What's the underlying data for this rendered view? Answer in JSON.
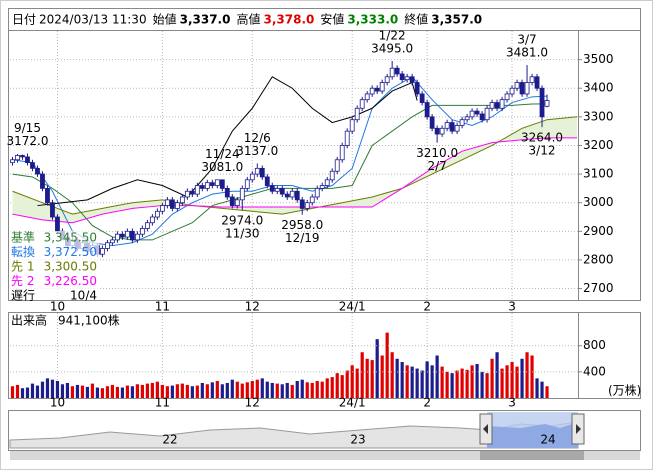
{
  "chart_data": {
    "type": "candlestick",
    "header": {
      "fields": [
        {
          "label": "日付",
          "value": "2024/03/13 11:30",
          "color": "#000000"
        },
        {
          "label": "始値",
          "value": "3,337.0",
          "color": "#000000"
        },
        {
          "label": "高値",
          "value": "3,378.0",
          "color": "#e00000"
        },
        {
          "label": "安値",
          "value": "3,333.0",
          "color": "#008000"
        },
        {
          "label": "終値",
          "value": "3,357.0",
          "color": "#000000"
        }
      ]
    },
    "x": [
      0,
      1,
      2,
      3,
      4,
      5,
      6,
      7,
      8,
      9,
      10,
      11,
      12,
      13,
      14,
      15,
      16,
      17,
      18,
      19,
      20,
      21,
      22,
      23,
      24,
      25,
      26,
      27,
      28,
      29,
      30,
      31,
      32,
      33,
      34,
      35,
      36,
      37,
      38,
      39,
      40,
      41,
      42,
      43,
      44,
      45,
      46,
      47,
      48,
      49,
      50,
      51,
      52,
      53,
      54,
      55,
      56,
      57,
      58,
      59,
      60,
      61,
      62,
      63,
      64,
      65,
      66,
      67,
      68,
      69,
      70,
      71,
      72,
      73,
      74,
      75,
      76,
      77,
      78,
      79,
      80,
      81,
      82,
      83,
      84,
      85,
      86,
      87,
      88,
      89,
      90,
      91,
      92,
      93,
      94,
      95,
      96,
      97,
      98,
      99,
      100,
      101,
      102,
      103,
      104,
      105,
      106,
      107
    ],
    "open": [
      3140,
      3150,
      3165,
      3160,
      3140,
      3120,
      3100,
      3050,
      3000,
      2950,
      2900,
      2880,
      2850,
      2870,
      2840,
      2860,
      2830,
      2850,
      2820,
      2840,
      2860,
      2870,
      2890,
      2880,
      2900,
      2870,
      2890,
      2910,
      2930,
      2950,
      2970,
      2990,
      3010,
      2980,
      3000,
      3020,
      3040,
      3030,
      3060,
      3050,
      3070,
      3060,
      3080,
      3050,
      3020,
      2990,
      3010,
      3050,
      3080,
      3100,
      3120,
      3090,
      3060,
      3040,
      3050,
      3030,
      3020,
      3040,
      3010,
      2980,
      3000,
      3020,
      3050,
      3060,
      3080,
      3110,
      3150,
      3200,
      3250,
      3290,
      3330,
      3360,
      3380,
      3400,
      3390,
      3420,
      3440,
      3470,
      3450,
      3430,
      3440,
      3420,
      3380,
      3350,
      3300,
      3260,
      3240,
      3260,
      3280,
      3250,
      3270,
      3290,
      3300,
      3320,
      3310,
      3290,
      3330,
      3350,
      3330,
      3360,
      3380,
      3400,
      3420,
      3380,
      3420,
      3440,
      3400,
      3337
    ],
    "high": [
      3160,
      3170,
      3168,
      3172,
      3150,
      3130,
      3110,
      3060,
      3010,
      2960,
      2910,
      2890,
      2880,
      2880,
      2870,
      2870,
      2860,
      2860,
      2850,
      2870,
      2880,
      2900,
      2900,
      2910,
      2910,
      2900,
      2920,
      2940,
      2960,
      2980,
      3000,
      3020,
      3020,
      3010,
      3030,
      3050,
      3050,
      3070,
      3070,
      3080,
      3080,
      3078,
      3081,
      3060,
      3030,
      3020,
      3060,
      3090,
      3110,
      3137,
      3130,
      3100,
      3070,
      3060,
      3060,
      3040,
      3050,
      3050,
      3020,
      3010,
      3030,
      3060,
      3070,
      3090,
      3120,
      3160,
      3210,
      3260,
      3300,
      3340,
      3370,
      3390,
      3410,
      3410,
      3430,
      3450,
      3495,
      3480,
      3460,
      3450,
      3450,
      3430,
      3390,
      3360,
      3310,
      3270,
      3270,
      3290,
      3290,
      3280,
      3300,
      3310,
      3330,
      3330,
      3320,
      3340,
      3360,
      3360,
      3370,
      3390,
      3410,
      3430,
      3430,
      3481,
      3450,
      3450,
      3410,
      3378
    ],
    "low": [
      3130,
      3140,
      3150,
      3130,
      3110,
      3090,
      3040,
      2990,
      2940,
      2890,
      2870,
      2840,
      2840,
      2830,
      2830,
      2820,
      2820,
      2810,
      2810,
      2830,
      2850,
      2860,
      2870,
      2870,
      2860,
      2860,
      2880,
      2900,
      2920,
      2940,
      2960,
      2980,
      2970,
      2970,
      2990,
      3010,
      3020,
      3020,
      3040,
      3040,
      3050,
      3050,
      3040,
      3010,
      2980,
      2980,
      2974,
      3040,
      3070,
      3090,
      3080,
      3050,
      3030,
      3030,
      3020,
      3010,
      3010,
      3000,
      2958,
      2970,
      2990,
      3010,
      3040,
      3050,
      3070,
      3100,
      3140,
      3190,
      3240,
      3280,
      3320,
      3350,
      3370,
      3380,
      3380,
      3410,
      3430,
      3440,
      3420,
      3420,
      3410,
      3370,
      3340,
      3290,
      3250,
      3210,
      3230,
      3250,
      3240,
      3240,
      3260,
      3280,
      3290,
      3300,
      3280,
      3280,
      3320,
      3320,
      3320,
      3350,
      3370,
      3390,
      3370,
      3370,
      3410,
      3390,
      3264,
      3333
    ],
    "close": [
      3150,
      3165,
      3160,
      3140,
      3120,
      3100,
      3050,
      3000,
      2950,
      2900,
      2880,
      2850,
      2870,
      2840,
      2860,
      2830,
      2850,
      2820,
      2840,
      2860,
      2870,
      2890,
      2880,
      2900,
      2870,
      2890,
      2910,
      2930,
      2950,
      2970,
      2990,
      3010,
      2980,
      3000,
      3020,
      3040,
      3030,
      3060,
      3050,
      3070,
      3060,
      3080,
      3050,
      3020,
      2990,
      3010,
      3050,
      3080,
      3100,
      3120,
      3090,
      3060,
      3040,
      3050,
      3030,
      3020,
      3040,
      3010,
      2980,
      3000,
      3020,
      3050,
      3060,
      3080,
      3110,
      3150,
      3200,
      3250,
      3290,
      3330,
      3360,
      3380,
      3400,
      3390,
      3420,
      3440,
      3470,
      3450,
      3430,
      3440,
      3420,
      3380,
      3350,
      3300,
      3260,
      3240,
      3260,
      3280,
      3250,
      3270,
      3290,
      3300,
      3320,
      3310,
      3290,
      3330,
      3350,
      3330,
      3360,
      3380,
      3400,
      3420,
      3380,
      3420,
      3440,
      3400,
      3300,
      3357
    ],
    "up_color": "#ffffff",
    "down_color": "#1c1c8c",
    "candle_outline": "#1c1c8c",
    "xlim": [
      -0.5,
      113.2
    ],
    "xticks": [
      {
        "value": 9,
        "label": "10"
      },
      {
        "value": 30,
        "label": "11"
      },
      {
        "value": 48,
        "label": "12"
      },
      {
        "value": 68,
        "label": "24/1"
      },
      {
        "value": 83,
        "label": "2"
      },
      {
        "value": 100,
        "label": "3"
      }
    ],
    "ylim": [
      2660,
      3600
    ],
    "yticks": [
      2700,
      2800,
      2900,
      3000,
      3100,
      3200,
      3300,
      3400,
      3500
    ],
    "grid": true,
    "cloud_color": "#e6f2d8",
    "series": [
      {
        "name": "基準",
        "color": "#2e7d32",
        "value_label": "3,345.50",
        "x": [
          0,
          4,
          8,
          12,
          16,
          20,
          24,
          28,
          32,
          36,
          40,
          44,
          48,
          52,
          56,
          60,
          64,
          68,
          72,
          76,
          80,
          84,
          88,
          92,
          96,
          100,
          104,
          107
        ],
        "values": [
          3100,
          3090,
          3050,
          3000,
          2920,
          2880,
          2870,
          2870,
          2900,
          2930,
          2990,
          3010,
          3030,
          3050,
          3050,
          3050,
          3050,
          3060,
          3200,
          3250,
          3300,
          3340,
          3340,
          3340,
          3340,
          3340,
          3345,
          3345.5
        ]
      },
      {
        "name": "転換",
        "color": "#1e78e6",
        "value_label": "3,372.50",
        "x": [
          0,
          4,
          8,
          12,
          16,
          20,
          24,
          28,
          32,
          36,
          40,
          44,
          48,
          52,
          56,
          60,
          64,
          68,
          72,
          76,
          80,
          84,
          88,
          92,
          96,
          100,
          104,
          107
        ],
        "values": [
          3150,
          3140,
          3040,
          2900,
          2860,
          2850,
          2860,
          2890,
          2960,
          3000,
          3030,
          3040,
          3040,
          3060,
          3060,
          3040,
          3060,
          3120,
          3330,
          3400,
          3440,
          3360,
          3290,
          3270,
          3300,
          3350,
          3370,
          3372.5
        ]
      },
      {
        "name": "先 1",
        "color": "#6b7a00",
        "value_label": "3,300.50",
        "x": [
          0,
          6,
          12,
          18,
          24,
          30,
          36,
          42,
          48,
          54,
          60,
          66,
          72,
          78,
          84,
          90,
          96,
          102,
          107,
          113
        ],
        "values": [
          3040,
          3000,
          2960,
          2980,
          3000,
          3010,
          2990,
          2980,
          2970,
          2960,
          2980,
          3000,
          3020,
          3050,
          3100,
          3150,
          3200,
          3260,
          3290,
          3300.5
        ]
      },
      {
        "name": "先 2",
        "color": "#ff00ff",
        "value_label": "3,226.50",
        "x": [
          0,
          6,
          12,
          18,
          24,
          30,
          36,
          42,
          48,
          54,
          60,
          66,
          72,
          78,
          84,
          90,
          96,
          102,
          107,
          113
        ],
        "values": [
          2960,
          2940,
          2930,
          2960,
          2980,
          2990,
          2990,
          2985,
          2985,
          2985,
          2985,
          2985,
          2985,
          3050,
          3120,
          3180,
          3210,
          3220,
          3226.5,
          3226.5
        ]
      },
      {
        "name": "遅行",
        "color": "#000000",
        "value_label": "10/4",
        "x": [
          5,
          10,
          15,
          20,
          25,
          30,
          35,
          40,
          44,
          48,
          52,
          56,
          60,
          64,
          68,
          72,
          76,
          80,
          81
        ],
        "values": [
          2990,
          3000,
          3010,
          3050,
          3080,
          3060,
          3020,
          3120,
          3250,
          3330,
          3440,
          3400,
          3330,
          3280,
          3300,
          3330,
          3390,
          3420,
          3357
        ]
      }
    ],
    "annotations": [
      {
        "x": 3,
        "value": 3172,
        "label": "3172.0",
        "date": "9/15",
        "position": "above"
      },
      {
        "x": 42,
        "value": 3081,
        "label": "3081.0",
        "date": "11/24",
        "position": "above"
      },
      {
        "x": 49,
        "value": 3137,
        "label": "3137.0",
        "date": "12/6",
        "position": "above"
      },
      {
        "x": 76,
        "value": 3495,
        "label": "3495.0",
        "date": "1/22",
        "position": "above"
      },
      {
        "x": 103,
        "value": 3481,
        "label": "3481.0",
        "date": "3/7",
        "position": "above"
      },
      {
        "x": 46,
        "value": 2974,
        "label": "2974.0",
        "date": "11/30",
        "position": "below"
      },
      {
        "x": 58,
        "value": 2958,
        "label": "2958.0",
        "date": "12/19",
        "position": "below"
      },
      {
        "x": 85,
        "value": 3210,
        "label": "3210.0",
        "date": "2/7",
        "position": "below"
      },
      {
        "x": 106,
        "value": 3264,
        "label": "3264.0",
        "date": "3/12",
        "position": "below"
      }
    ],
    "volume": {
      "title": "出来高",
      "total_label": "941,100株",
      "unit": "(万株)",
      "values": [
        180,
        200,
        150,
        160,
        220,
        190,
        250,
        300,
        280,
        260,
        210,
        230,
        180,
        200,
        190,
        170,
        220,
        160,
        150,
        180,
        200,
        170,
        160,
        190,
        180,
        210,
        200,
        220,
        230,
        250,
        200,
        180,
        190,
        210,
        220,
        200,
        180,
        190,
        230,
        210,
        240,
        260,
        210,
        230,
        280,
        250,
        220,
        240,
        260,
        280,
        300,
        250,
        230,
        220,
        210,
        230,
        200,
        260,
        280,
        240,
        230,
        260,
        250,
        300,
        320,
        380,
        350,
        420,
        500,
        450,
        700,
        600,
        580,
        900,
        650,
        1000,
        700,
        600,
        550,
        500,
        480,
        450,
        420,
        560,
        500,
        650,
        480,
        400,
        380,
        420,
        450,
        430,
        500,
        520,
        400,
        380,
        600,
        700,
        450,
        500,
        550,
        480,
        600,
        700,
        650,
        300,
        250,
        180
      ],
      "ylim": [
        0,
        1300
      ],
      "yticks": [
        400,
        800
      ],
      "up_color": "#e00000",
      "down_color": "#1c1c8c"
    },
    "navigator": {
      "labels": [
        "22",
        "23",
        "24"
      ]
    }
  }
}
